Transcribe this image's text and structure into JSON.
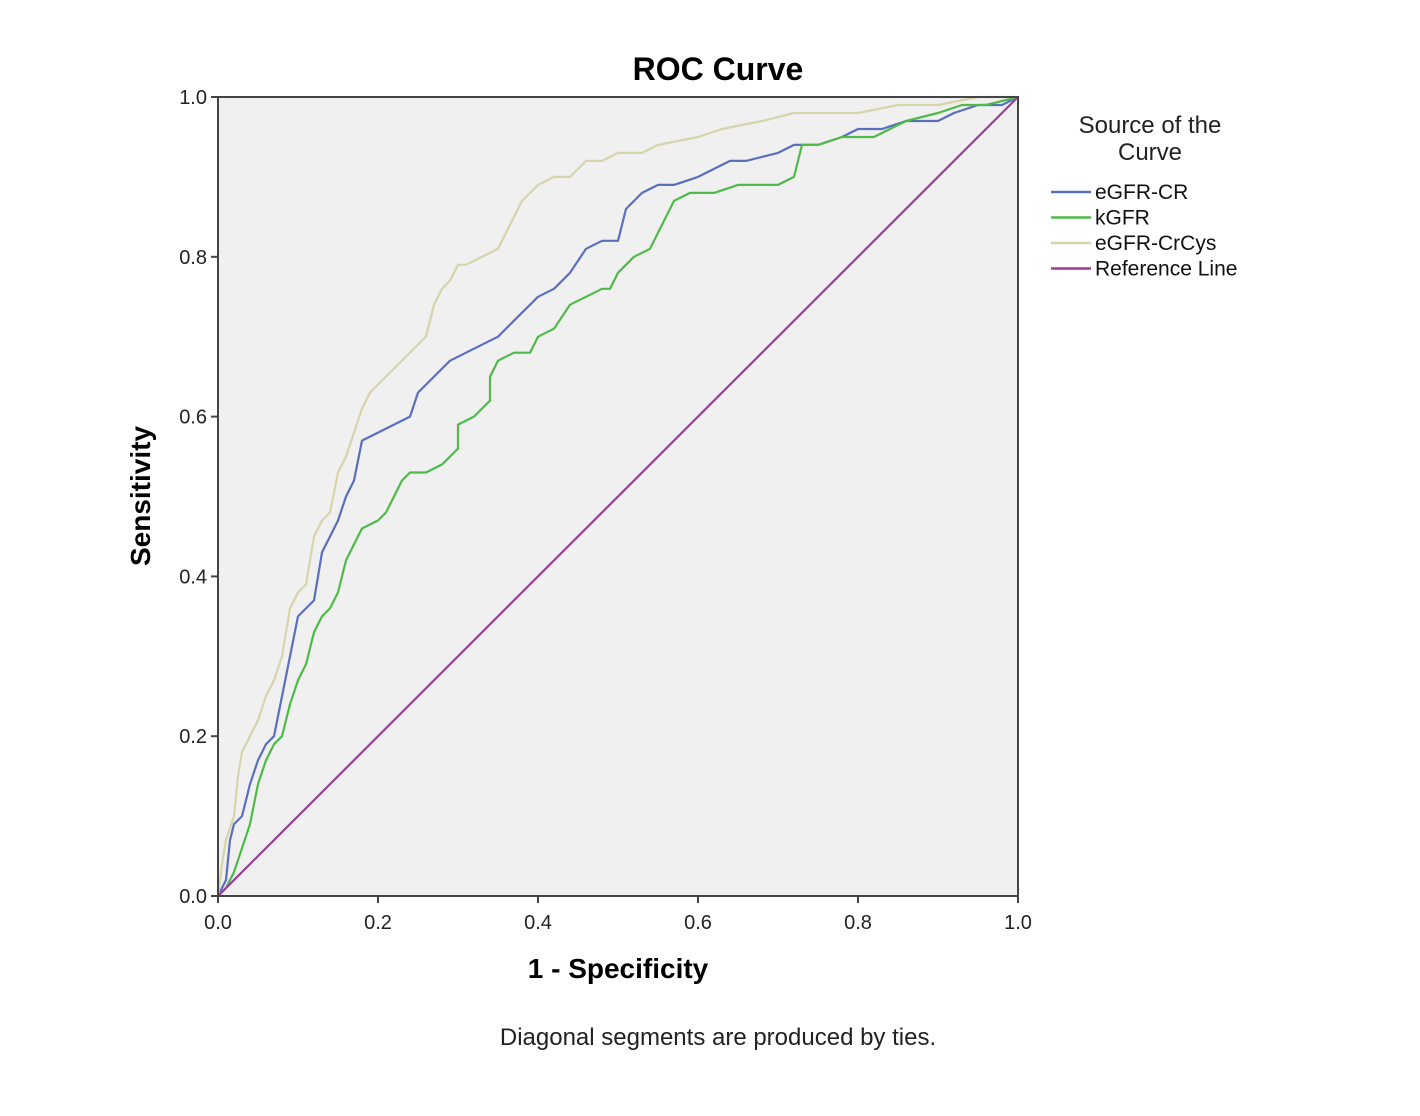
{
  "chart_data": {
    "type": "line",
    "title": "ROC Curve",
    "xlabel": "1 - Specificity",
    "ylabel": "Sensitivity",
    "xlim": [
      0,
      1
    ],
    "ylim": [
      0,
      1
    ],
    "x_ticks": [
      "0.0",
      "0.2",
      "0.4",
      "0.6",
      "0.8",
      "1.0"
    ],
    "y_ticks": [
      "0.0",
      "0.2",
      "0.4",
      "0.6",
      "0.8",
      "1.0"
    ],
    "grid": false,
    "plot_background": "#f0f0f0",
    "legend": {
      "title_line1": "Source of the",
      "title_line2": "Curve",
      "position": "right"
    },
    "footnote": "Diagonal segments are produced by ties.",
    "series": [
      {
        "name": "eGFR-CR",
        "color": "#5b6fbf",
        "points": [
          [
            0.0,
            0.0
          ],
          [
            0.01,
            0.02
          ],
          [
            0.015,
            0.07
          ],
          [
            0.02,
            0.09
          ],
          [
            0.03,
            0.1
          ],
          [
            0.04,
            0.14
          ],
          [
            0.05,
            0.17
          ],
          [
            0.06,
            0.19
          ],
          [
            0.07,
            0.2
          ],
          [
            0.08,
            0.25
          ],
          [
            0.09,
            0.3
          ],
          [
            0.1,
            0.35
          ],
          [
            0.12,
            0.37
          ],
          [
            0.13,
            0.43
          ],
          [
            0.14,
            0.45
          ],
          [
            0.15,
            0.47
          ],
          [
            0.16,
            0.5
          ],
          [
            0.17,
            0.52
          ],
          [
            0.18,
            0.57
          ],
          [
            0.2,
            0.58
          ],
          [
            0.22,
            0.59
          ],
          [
            0.24,
            0.6
          ],
          [
            0.25,
            0.63
          ],
          [
            0.27,
            0.65
          ],
          [
            0.29,
            0.67
          ],
          [
            0.31,
            0.68
          ],
          [
            0.33,
            0.69
          ],
          [
            0.35,
            0.7
          ],
          [
            0.37,
            0.72
          ],
          [
            0.38,
            0.73
          ],
          [
            0.4,
            0.75
          ],
          [
            0.42,
            0.76
          ],
          [
            0.44,
            0.78
          ],
          [
            0.46,
            0.81
          ],
          [
            0.48,
            0.82
          ],
          [
            0.5,
            0.82
          ],
          [
            0.51,
            0.86
          ],
          [
            0.53,
            0.88
          ],
          [
            0.55,
            0.89
          ],
          [
            0.57,
            0.89
          ],
          [
            0.6,
            0.9
          ],
          [
            0.62,
            0.91
          ],
          [
            0.64,
            0.92
          ],
          [
            0.66,
            0.92
          ],
          [
            0.7,
            0.93
          ],
          [
            0.72,
            0.94
          ],
          [
            0.75,
            0.94
          ],
          [
            0.78,
            0.95
          ],
          [
            0.8,
            0.96
          ],
          [
            0.83,
            0.96
          ],
          [
            0.86,
            0.97
          ],
          [
            0.9,
            0.97
          ],
          [
            0.92,
            0.98
          ],
          [
            0.95,
            0.99
          ],
          [
            0.98,
            0.99
          ],
          [
            1.0,
            1.0
          ]
        ]
      },
      {
        "name": "kGFR",
        "color": "#4fba48",
        "points": [
          [
            0.0,
            0.0
          ],
          [
            0.01,
            0.01
          ],
          [
            0.02,
            0.03
          ],
          [
            0.03,
            0.06
          ],
          [
            0.04,
            0.09
          ],
          [
            0.05,
            0.14
          ],
          [
            0.06,
            0.17
          ],
          [
            0.07,
            0.19
          ],
          [
            0.08,
            0.2
          ],
          [
            0.09,
            0.24
          ],
          [
            0.1,
            0.27
          ],
          [
            0.11,
            0.29
          ],
          [
            0.12,
            0.33
          ],
          [
            0.13,
            0.35
          ],
          [
            0.14,
            0.36
          ],
          [
            0.15,
            0.38
          ],
          [
            0.16,
            0.42
          ],
          [
            0.17,
            0.44
          ],
          [
            0.18,
            0.46
          ],
          [
            0.2,
            0.47
          ],
          [
            0.21,
            0.48
          ],
          [
            0.22,
            0.5
          ],
          [
            0.23,
            0.52
          ],
          [
            0.24,
            0.53
          ],
          [
            0.26,
            0.53
          ],
          [
            0.28,
            0.54
          ],
          [
            0.3,
            0.56
          ],
          [
            0.3,
            0.59
          ],
          [
            0.32,
            0.6
          ],
          [
            0.34,
            0.62
          ],
          [
            0.34,
            0.65
          ],
          [
            0.35,
            0.67
          ],
          [
            0.37,
            0.68
          ],
          [
            0.39,
            0.68
          ],
          [
            0.4,
            0.7
          ],
          [
            0.42,
            0.71
          ],
          [
            0.44,
            0.74
          ],
          [
            0.46,
            0.75
          ],
          [
            0.48,
            0.76
          ],
          [
            0.49,
            0.76
          ],
          [
            0.5,
            0.78
          ],
          [
            0.52,
            0.8
          ],
          [
            0.54,
            0.81
          ],
          [
            0.55,
            0.83
          ],
          [
            0.56,
            0.85
          ],
          [
            0.57,
            0.87
          ],
          [
            0.59,
            0.88
          ],
          [
            0.62,
            0.88
          ],
          [
            0.65,
            0.89
          ],
          [
            0.7,
            0.89
          ],
          [
            0.72,
            0.9
          ],
          [
            0.73,
            0.94
          ],
          [
            0.75,
            0.94
          ],
          [
            0.78,
            0.95
          ],
          [
            0.82,
            0.95
          ],
          [
            0.84,
            0.96
          ],
          [
            0.86,
            0.97
          ],
          [
            0.9,
            0.98
          ],
          [
            0.93,
            0.99
          ],
          [
            0.96,
            0.99
          ],
          [
            1.0,
            1.0
          ]
        ]
      },
      {
        "name": "eGFR-CrCys",
        "color": "#d6d4a8",
        "points": [
          [
            0.0,
            0.0
          ],
          [
            0.005,
            0.04
          ],
          [
            0.01,
            0.07
          ],
          [
            0.02,
            0.1
          ],
          [
            0.025,
            0.15
          ],
          [
            0.03,
            0.18
          ],
          [
            0.04,
            0.2
          ],
          [
            0.05,
            0.22
          ],
          [
            0.06,
            0.25
          ],
          [
            0.07,
            0.27
          ],
          [
            0.08,
            0.3
          ],
          [
            0.09,
            0.36
          ],
          [
            0.1,
            0.38
          ],
          [
            0.11,
            0.39
          ],
          [
            0.12,
            0.45
          ],
          [
            0.13,
            0.47
          ],
          [
            0.14,
            0.48
          ],
          [
            0.15,
            0.53
          ],
          [
            0.16,
            0.55
          ],
          [
            0.17,
            0.58
          ],
          [
            0.18,
            0.61
          ],
          [
            0.19,
            0.63
          ],
          [
            0.2,
            0.64
          ],
          [
            0.21,
            0.65
          ],
          [
            0.22,
            0.66
          ],
          [
            0.23,
            0.67
          ],
          [
            0.24,
            0.68
          ],
          [
            0.25,
            0.69
          ],
          [
            0.26,
            0.7
          ],
          [
            0.27,
            0.74
          ],
          [
            0.28,
            0.76
          ],
          [
            0.29,
            0.77
          ],
          [
            0.3,
            0.79
          ],
          [
            0.31,
            0.79
          ],
          [
            0.33,
            0.8
          ],
          [
            0.35,
            0.81
          ],
          [
            0.37,
            0.85
          ],
          [
            0.38,
            0.87
          ],
          [
            0.39,
            0.88
          ],
          [
            0.4,
            0.89
          ],
          [
            0.42,
            0.9
          ],
          [
            0.44,
            0.9
          ],
          [
            0.46,
            0.92
          ],
          [
            0.48,
            0.92
          ],
          [
            0.5,
            0.93
          ],
          [
            0.53,
            0.93
          ],
          [
            0.55,
            0.94
          ],
          [
            0.6,
            0.95
          ],
          [
            0.63,
            0.96
          ],
          [
            0.68,
            0.97
          ],
          [
            0.72,
            0.98
          ],
          [
            0.8,
            0.98
          ],
          [
            0.85,
            0.99
          ],
          [
            0.9,
            0.99
          ],
          [
            0.95,
            1.0
          ],
          [
            1.0,
            1.0
          ]
        ]
      },
      {
        "name": "Reference Line",
        "color": "#9b3d99",
        "points": [
          [
            0.0,
            0.0
          ],
          [
            1.0,
            1.0
          ]
        ]
      }
    ]
  }
}
